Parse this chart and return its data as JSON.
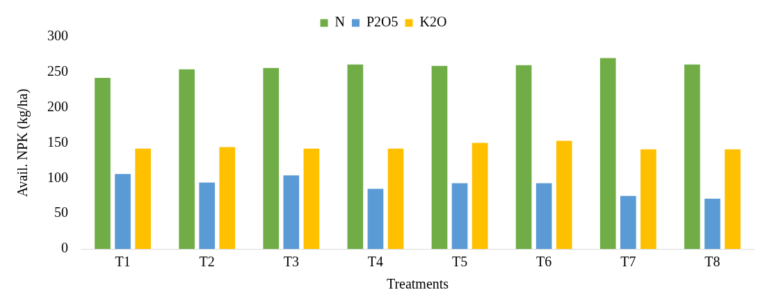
{
  "chart_data": {
    "type": "bar",
    "xlabel": "Treatments",
    "ylabel": "Avail. NPK (kg/ha)",
    "categories": [
      "T1",
      "T2",
      "T3",
      "T4",
      "T5",
      "T6",
      "T7",
      "T8"
    ],
    "series": [
      {
        "name": "N",
        "color": "#70ad47",
        "values": [
          242,
          254,
          256,
          261,
          259,
          260,
          270,
          261
        ]
      },
      {
        "name": "P2O5",
        "color": "#5b9bd5",
        "values": [
          106,
          94,
          104,
          85,
          93,
          93,
          75,
          71
        ]
      },
      {
        "name": "K2O",
        "color": "#ffc000",
        "values": [
          142,
          144,
          142,
          142,
          150,
          153,
          141,
          141
        ]
      }
    ],
    "ylim": [
      0,
      300
    ],
    "yticks": [
      0,
      50,
      100,
      150,
      200,
      250,
      300
    ],
    "grid": false,
    "legend": "top"
  }
}
